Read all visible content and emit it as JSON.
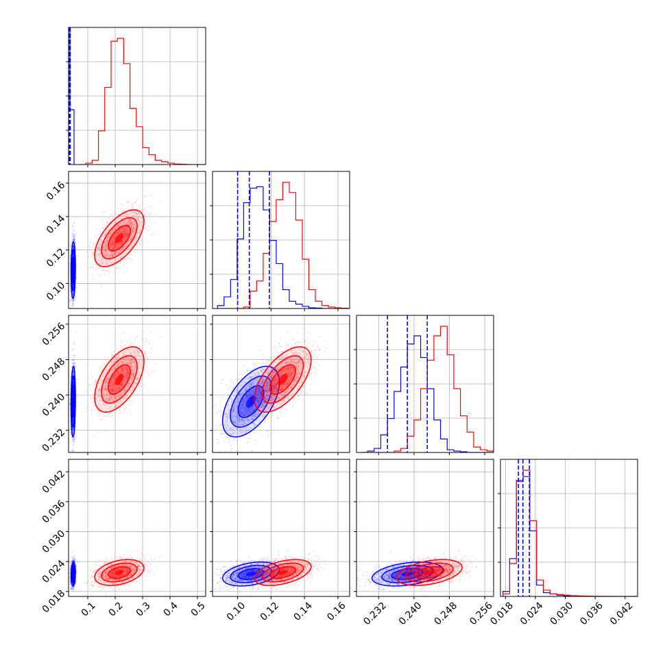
{
  "chart_data": {
    "type": "scatter",
    "subtype": "corner-plot",
    "colors": {
      "series_a": "#0000ff",
      "series_b": "#ff0000"
    },
    "grid": true,
    "parameters": [
      {
        "key": "p1",
        "range": [
          0.03,
          0.53
        ],
        "ticks": [
          0.1,
          0.2,
          0.3,
          0.4,
          0.5
        ],
        "tick_labels": [
          "0.1",
          "0.2",
          "0.3",
          "0.4",
          "0.5"
        ]
      },
      {
        "key": "p2",
        "range": [
          0.085,
          0.167
        ],
        "ticks": [
          0.1,
          0.12,
          0.14,
          0.16
        ],
        "tick_labels": [
          "0.10",
          "0.12",
          "0.14",
          "0.16"
        ]
      },
      {
        "key": "p3",
        "range": [
          0.227,
          0.258
        ],
        "ticks": [
          0.232,
          0.24,
          0.248,
          0.256
        ],
        "tick_labels": [
          "0.232",
          "0.240",
          "0.248",
          "0.256"
        ]
      },
      {
        "key": "p4",
        "range": [
          0.017,
          0.0445
        ],
        "ticks": [
          0.018,
          0.024,
          0.03,
          0.036,
          0.042
        ],
        "tick_labels": [
          "0.018",
          "0.024",
          "0.030",
          "0.036",
          "0.042"
        ]
      }
    ],
    "series": [
      {
        "color_key": "series_a",
        "mean": [
          0.047,
          0.108,
          0.2385,
          0.0215
        ],
        "std": [
          0.004,
          0.0085,
          0.004,
          0.0012
        ],
        "corr": [
          [
            1,
            0.1,
            0.1,
            0.1
          ],
          [
            0.1,
            1,
            0.55,
            0.35
          ],
          [
            0.1,
            0.55,
            1,
            0.35
          ],
          [
            0.1,
            0.35,
            0.35,
            1
          ]
        ],
        "quantiles": [
          [
            0.044,
            0.047,
            0.05
          ],
          [
            0.1,
            0.107,
            0.119
          ],
          [
            0.234,
            0.2385,
            0.243
          ],
          [
            0.0206,
            0.0215,
            0.0228
          ]
        ]
      },
      {
        "color_key": "series_b",
        "mean": [
          0.215,
          0.127,
          0.2435,
          0.0218
        ],
        "std": [
          0.045,
          0.0085,
          0.0037,
          0.0013
        ],
        "corr": [
          [
            1,
            0.6,
            0.55,
            0.35
          ],
          [
            0.6,
            1,
            0.6,
            0.45
          ],
          [
            0.55,
            0.6,
            1,
            0.4
          ],
          [
            0.35,
            0.45,
            0.4,
            1
          ]
        ],
        "quantiles": []
      }
    ],
    "histograms": [
      {
        "series_a": [
          0,
          0,
          0,
          0,
          0,
          0,
          0,
          0,
          0,
          0,
          0,
          0,
          0,
          0,
          0,
          0,
          0,
          0,
          0,
          0
        ],
        "series_b": [
          0,
          1,
          3,
          24,
          55,
          88,
          90,
          72,
          40,
          27,
          12,
          7,
          3,
          2,
          1,
          0.4,
          0.2,
          0,
          0,
          0
        ]
      },
      {
        "series_a": [
          2,
          8,
          20,
          48,
          73,
          83,
          84,
          68,
          47,
          31,
          13,
          5,
          3,
          1.5,
          0.5,
          0.3,
          0,
          0,
          0,
          0
        ],
        "series_b": [
          0,
          0,
          0,
          0,
          1,
          12,
          19,
          38,
          60,
          75,
          87,
          80,
          61,
          34,
          13,
          5,
          2,
          1,
          0.5,
          0.2
        ],
        "series_a_peak_fraction": 0.75
      },
      {
        "series_a": [
          0,
          1,
          3,
          13,
          25,
          45,
          63,
          80,
          86,
          70,
          47,
          24,
          10,
          2,
          1,
          0.5,
          0,
          0,
          0,
          0
        ],
        "series_b": [
          0,
          0,
          0,
          0,
          0,
          1,
          3,
          12,
          24,
          47,
          68,
          86,
          93,
          72,
          47,
          27,
          15,
          4,
          2,
          1
        ]
      },
      {
        "series_a": [
          4,
          30,
          92,
          95,
          52,
          9,
          3,
          2,
          1,
          0.5,
          0.3,
          0.2,
          0.1,
          0,
          0,
          0,
          0,
          0,
          0,
          0
        ],
        "series_b": [
          2,
          26,
          91,
          100,
          60,
          13,
          5,
          2,
          1.5,
          1,
          0.6,
          0.4,
          0.3,
          0.2,
          0.1,
          0.1,
          0,
          0,
          0,
          0
        ]
      }
    ],
    "spike": {
      "series_a_p1_peak_fraction": 1.08
    }
  }
}
